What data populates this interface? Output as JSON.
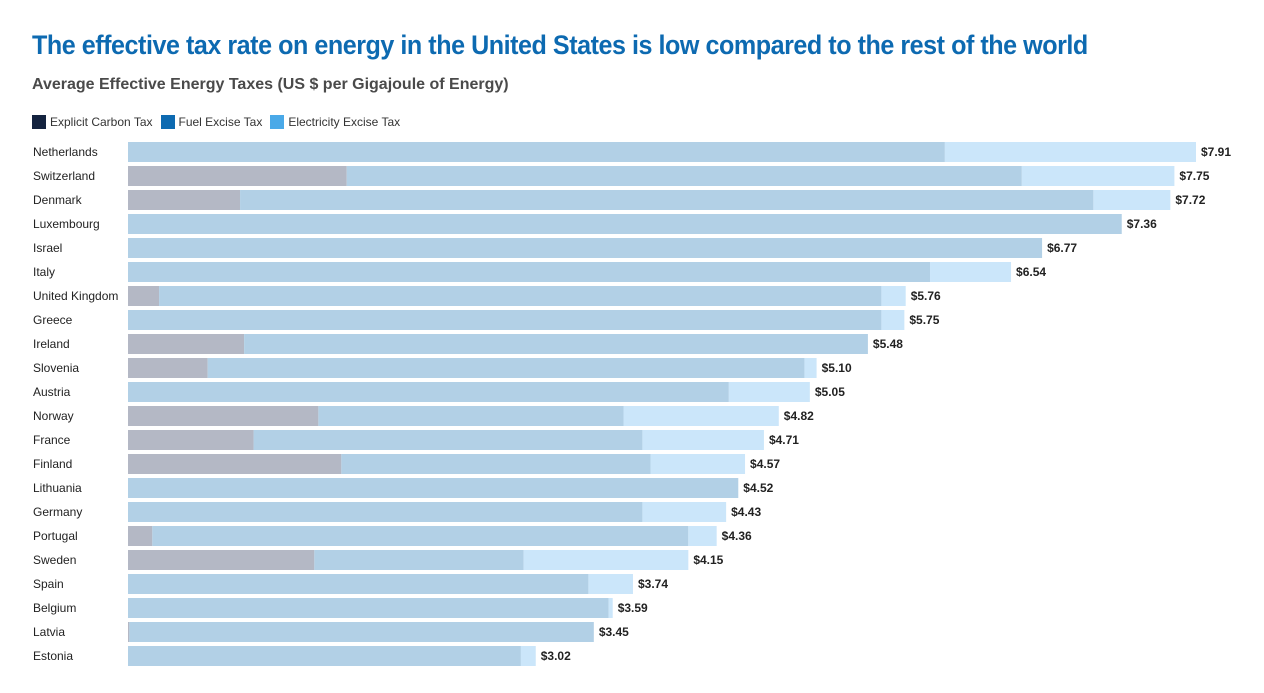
{
  "header": {
    "title": "The effective tax rate on energy in the United States is low compared to the rest of the world",
    "subtitle": "Average Effective Energy Taxes (US $ per Gigajoule of Energy)"
  },
  "legend": [
    {
      "label": "Explicit Carbon Tax",
      "color": "#14233f"
    },
    {
      "label": "Fuel Excise Tax",
      "color": "#0d6ab1"
    },
    {
      "label": "Electricity Excise Tax",
      "color": "#4aa9e8"
    }
  ],
  "colors": {
    "carbon_bar": "#b4b8c5",
    "fuel_bar": "#b2d0e6",
    "electricity_bar": "#cbe6fa"
  },
  "chart_data": {
    "type": "bar",
    "orientation": "horizontal",
    "stacked": true,
    "xlim": [
      0,
      7.91
    ],
    "grid": false,
    "legend_position": "top-left",
    "categories": [
      "Netherlands",
      "Switzerland",
      "Denmark",
      "Luxembourg",
      "Israel",
      "Italy",
      "United Kingdom",
      "Greece",
      "Ireland",
      "Slovenia",
      "Austria",
      "Norway",
      "France",
      "Finland",
      "Lithuania",
      "Germany",
      "Portugal",
      "Sweden",
      "Spain",
      "Belgium",
      "Latvia",
      "Estonia"
    ],
    "series": [
      {
        "name": "Explicit Carbon Tax",
        "values": [
          0,
          1.62,
          0.83,
          0,
          0,
          0,
          0.23,
          0,
          0.86,
          0.59,
          0,
          1.41,
          0.93,
          1.58,
          0,
          0,
          0.18,
          1.38,
          0,
          0,
          0.01,
          0
        ]
      },
      {
        "name": "Fuel Excise Tax",
        "values": [
          6.05,
          5.0,
          6.32,
          7.36,
          6.77,
          5.94,
          5.35,
          5.58,
          4.62,
          4.42,
          4.45,
          2.26,
          2.88,
          2.29,
          4.52,
          3.81,
          3.97,
          1.55,
          3.41,
          3.56,
          3.44,
          2.91
        ]
      },
      {
        "name": "Electricity Excise Tax",
        "values": [
          1.86,
          1.13,
          0.57,
          0,
          0,
          0.6,
          0.18,
          0.17,
          0,
          0.09,
          0.6,
          1.15,
          0.9,
          0.7,
          0,
          0.62,
          0.21,
          1.22,
          0.33,
          0.03,
          0,
          0.11
        ]
      }
    ],
    "data_labels": [
      "$7.91",
      "$7.75",
      "$7.72",
      "$7.36",
      "$6.77",
      "$6.54",
      "$5.76",
      "$5.75",
      "$5.48",
      "$5.10",
      "$5.05",
      "$4.82",
      "$4.71",
      "$4.57",
      "$4.52",
      "$4.43",
      "$4.36",
      "$4.15",
      "$3.74",
      "$3.59",
      "$3.45",
      "$3.02"
    ],
    "totals": [
      7.91,
      7.75,
      7.72,
      7.36,
      6.77,
      6.54,
      5.76,
      5.75,
      5.48,
      5.1,
      5.05,
      4.82,
      4.71,
      4.57,
      4.52,
      4.43,
      4.36,
      4.15,
      3.74,
      3.59,
      3.45,
      3.02
    ]
  }
}
